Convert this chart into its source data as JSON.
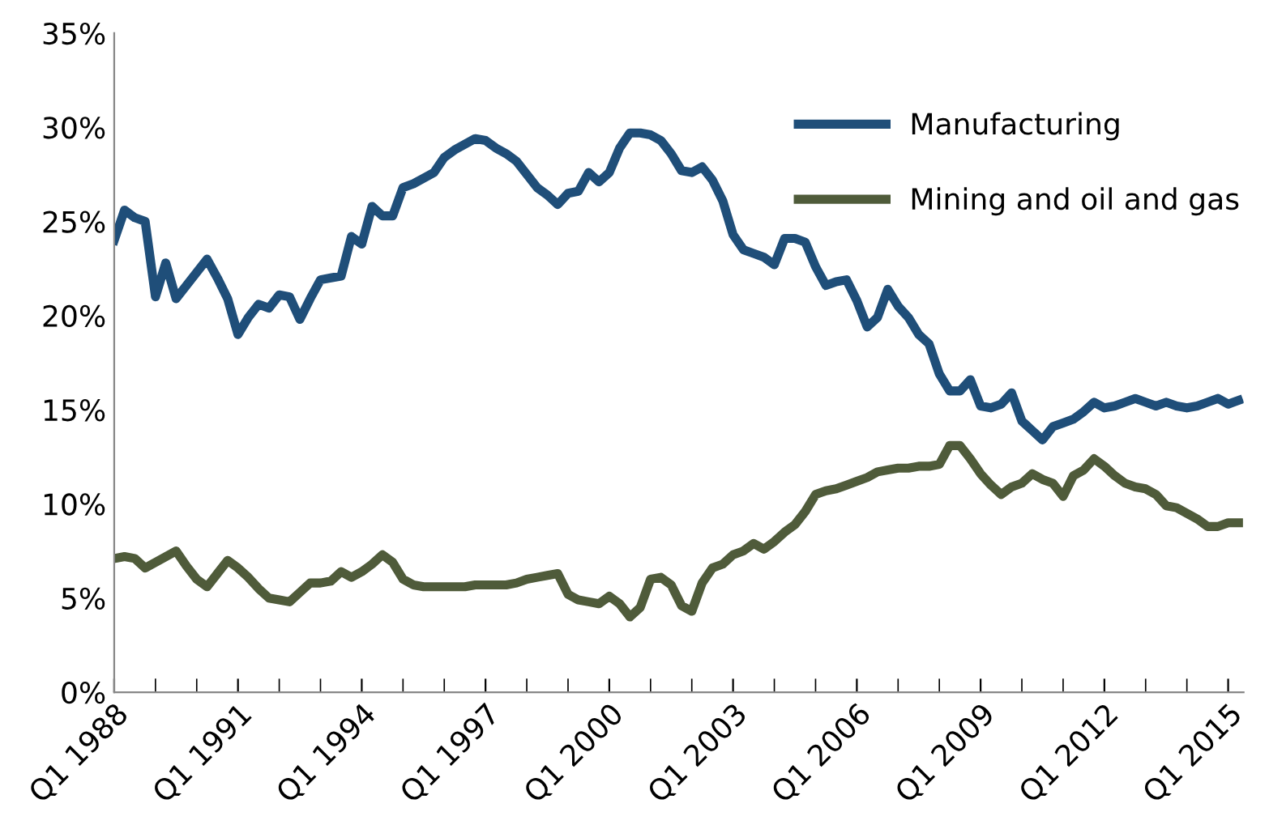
{
  "chart_data": {
    "type": "line",
    "categories": [
      "Q1 1988",
      null,
      null,
      null,
      null,
      null,
      null,
      null,
      null,
      null,
      null,
      null,
      "Q1 1991",
      null,
      null,
      null,
      null,
      null,
      null,
      null,
      null,
      null,
      null,
      null,
      "Q1 1994",
      null,
      null,
      null,
      null,
      null,
      null,
      null,
      null,
      null,
      null,
      null,
      "Q1 1997",
      null,
      null,
      null,
      null,
      null,
      null,
      null,
      null,
      null,
      null,
      null,
      "Q1 2000",
      null,
      null,
      null,
      null,
      null,
      null,
      null,
      null,
      null,
      null,
      null,
      "Q1 2003",
      null,
      null,
      null,
      null,
      null,
      null,
      null,
      null,
      null,
      null,
      null,
      "Q1 2006",
      null,
      null,
      null,
      null,
      null,
      null,
      null,
      null,
      null,
      null,
      null,
      "Q1 2009",
      null,
      null,
      null,
      null,
      null,
      null,
      null,
      null,
      null,
      null,
      null,
      "Q1 2012",
      null,
      null,
      null,
      null,
      null,
      null,
      null,
      null,
      null,
      null,
      null,
      "Q1 2015",
      null
    ],
    "series": [
      {
        "name": "Manufacturing",
        "color": "#1f4e79",
        "values": [
          24.0,
          25.6,
          25.2,
          25.0,
          21.0,
          22.8,
          20.9,
          21.6,
          22.3,
          23.0,
          22.0,
          20.9,
          19.0,
          19.9,
          20.6,
          20.4,
          21.1,
          21.0,
          19.8,
          20.9,
          21.9,
          22.0,
          22.1,
          24.2,
          23.8,
          25.8,
          25.3,
          25.3,
          26.8,
          27.0,
          27.3,
          27.6,
          28.4,
          28.8,
          29.1,
          29.4,
          29.3,
          28.9,
          28.6,
          28.2,
          27.5,
          26.8,
          26.4,
          25.9,
          26.5,
          26.6,
          27.6,
          27.1,
          27.6,
          28.9,
          29.7,
          29.7,
          29.6,
          29.3,
          28.6,
          27.7,
          27.6,
          27.9,
          27.2,
          26.1,
          24.3,
          23.5,
          23.3,
          23.1,
          22.7,
          24.1,
          24.1,
          23.9,
          22.6,
          21.6,
          21.8,
          21.9,
          20.8,
          19.4,
          19.9,
          21.4,
          20.5,
          19.9,
          19.0,
          18.5,
          16.9,
          16.0,
          16.0,
          16.6,
          15.2,
          15.1,
          15.3,
          15.9,
          14.4,
          13.9,
          13.4,
          14.1,
          14.3,
          14.5,
          14.9,
          15.4,
          15.1,
          15.2,
          15.4,
          15.6,
          15.4,
          15.2,
          15.4,
          15.2,
          15.1,
          15.2,
          15.4,
          15.6,
          15.3,
          15.5
        ]
      },
      {
        "name": "Mining and oil and gas",
        "color": "#4f5b3a",
        "values": [
          7.1,
          7.2,
          7.1,
          6.6,
          6.9,
          7.2,
          7.5,
          6.7,
          6.0,
          5.6,
          6.3,
          7.0,
          6.6,
          6.1,
          5.5,
          5.0,
          4.9,
          4.8,
          5.3,
          5.8,
          5.8,
          5.9,
          6.4,
          6.1,
          6.4,
          6.8,
          7.3,
          6.9,
          6.0,
          5.7,
          5.6,
          5.6,
          5.6,
          5.6,
          5.6,
          5.7,
          5.7,
          5.7,
          5.7,
          5.8,
          6.0,
          6.1,
          6.2,
          6.3,
          5.2,
          4.9,
          4.8,
          4.7,
          5.1,
          4.7,
          4.0,
          4.5,
          6.0,
          6.1,
          5.7,
          4.6,
          4.3,
          5.8,
          6.6,
          6.8,
          7.3,
          7.5,
          7.9,
          7.6,
          8.0,
          8.5,
          8.9,
          9.6,
          10.5,
          10.7,
          10.8,
          11.0,
          11.2,
          11.4,
          11.7,
          11.8,
          11.9,
          11.9,
          12.0,
          12.0,
          12.1,
          13.1,
          13.1,
          12.4,
          11.6,
          11.0,
          10.5,
          10.9,
          11.1,
          11.6,
          11.3,
          11.1,
          10.4,
          11.5,
          11.8,
          12.4,
          12.0,
          11.5,
          11.1,
          10.9,
          10.8,
          10.5,
          9.9,
          9.8,
          9.5,
          9.2,
          8.8,
          8.8,
          9.0,
          9.0
        ]
      }
    ],
    "ylim": [
      0,
      35
    ],
    "yticks": [
      {
        "value": 0,
        "label": "0%"
      },
      {
        "value": 5,
        "label": "5%"
      },
      {
        "value": 10,
        "label": "10%"
      },
      {
        "value": 15,
        "label": "15%"
      },
      {
        "value": 20,
        "label": "20%"
      },
      {
        "value": 25,
        "label": "25%"
      },
      {
        "value": 30,
        "label": "30%"
      },
      {
        "value": 35,
        "label": "35%"
      }
    ],
    "grid": false,
    "legend": "top right",
    "marker": "none",
    "line_style": "solid"
  }
}
